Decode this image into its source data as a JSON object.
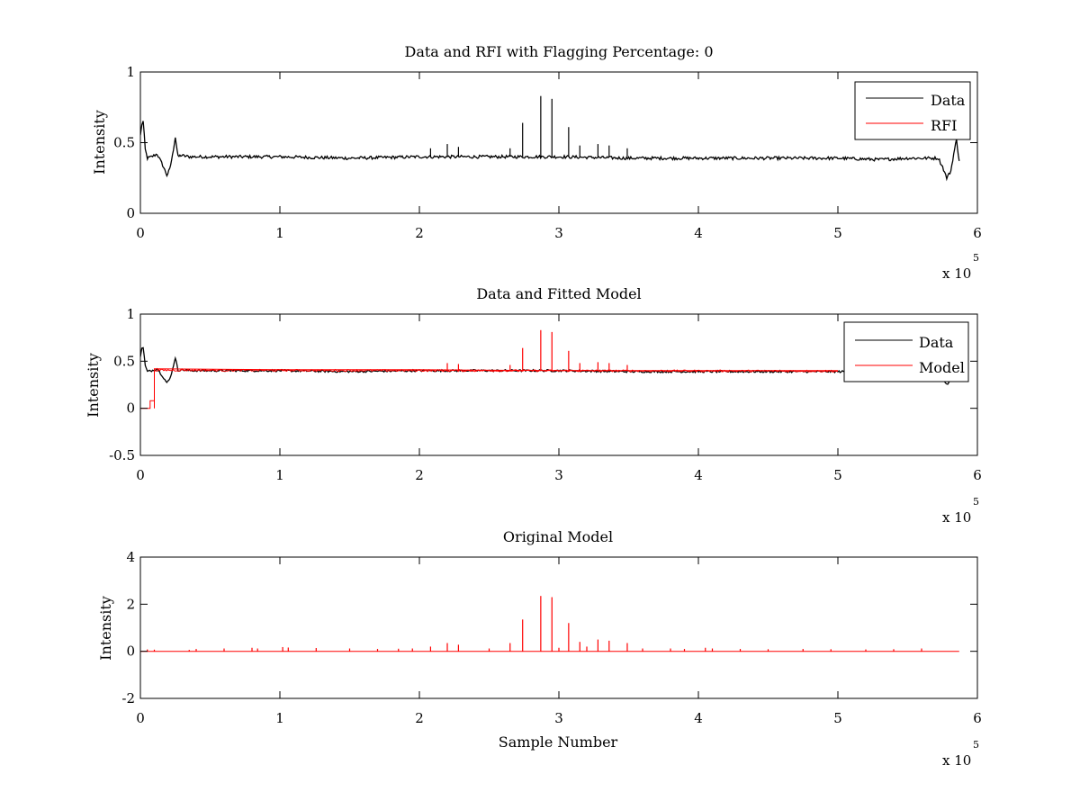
{
  "figure": {
    "background": "#ffffff"
  },
  "colors": {
    "data": "#000000",
    "model": "#ff0000",
    "axes": "#000000"
  },
  "chart_data": [
    {
      "type": "line",
      "title": "Data and RFI with Flagging Percentage: 0",
      "xlabel": "",
      "ylabel": "Intensity",
      "xlim": [
        0,
        6
      ],
      "ylim": [
        0,
        1
      ],
      "x_multiplier": "x 10",
      "x_exponent": "5",
      "xticks": [
        "0",
        "1",
        "2",
        "3",
        "4",
        "5",
        "6"
      ],
      "yticks": [
        "0",
        "0.5",
        "1"
      ],
      "ytick_values": [
        0,
        0.5,
        1
      ],
      "grid": false,
      "legend": {
        "placement": "top-right",
        "entries": [
          "Data",
          "RFI"
        ]
      },
      "baseline": 0.4,
      "series": [
        {
          "name": "Data",
          "color": "#000000",
          "x": [
            0,
            0.01,
            0.02,
            0.035,
            0.05,
            0.08,
            0.12,
            0.16,
            0.19,
            0.21,
            0.23,
            0.25,
            0.27,
            0.29,
            0.35,
            0.5,
            1.0,
            1.5,
            2.0,
            2.5,
            3.0,
            3.5,
            4.0,
            4.5,
            5.0,
            5.3,
            5.5,
            5.72,
            5.75,
            5.78,
            5.81,
            5.83,
            5.85,
            5.87
          ],
          "y": [
            0.55,
            0.63,
            0.65,
            0.45,
            0.39,
            0.4,
            0.42,
            0.34,
            0.27,
            0.31,
            0.41,
            0.54,
            0.4,
            0.41,
            0.4,
            0.4,
            0.4,
            0.39,
            0.4,
            0.4,
            0.4,
            0.39,
            0.39,
            0.39,
            0.39,
            0.38,
            0.39,
            0.39,
            0.33,
            0.25,
            0.3,
            0.42,
            0.52,
            0.37
          ],
          "spikes": [
            {
              "x": 2.08,
              "y": 0.46
            },
            {
              "x": 2.2,
              "y": 0.49
            },
            {
              "x": 2.28,
              "y": 0.47
            },
            {
              "x": 2.65,
              "y": 0.46
            },
            {
              "x": 2.74,
              "y": 0.64
            },
            {
              "x": 2.87,
              "y": 0.83
            },
            {
              "x": 2.95,
              "y": 0.81
            },
            {
              "x": 3.07,
              "y": 0.61
            },
            {
              "x": 3.15,
              "y": 0.48
            },
            {
              "x": 3.28,
              "y": 0.49
            },
            {
              "x": 3.36,
              "y": 0.48
            },
            {
              "x": 3.49,
              "y": 0.46
            }
          ]
        },
        {
          "name": "RFI",
          "color": "#ff0000",
          "x": [],
          "y": []
        }
      ]
    },
    {
      "type": "line",
      "title": "Data and Fitted Model",
      "xlabel": "",
      "ylabel": "Intensity",
      "xlim": [
        0,
        6
      ],
      "ylim": [
        -0.5,
        1
      ],
      "x_multiplier": "x 10",
      "x_exponent": "5",
      "xticks": [
        "0",
        "1",
        "2",
        "3",
        "4",
        "5",
        "6"
      ],
      "yticks": [
        "-0.5",
        "0",
        "0.5",
        "1"
      ],
      "ytick_values": [
        -0.5,
        0,
        0.5,
        1
      ],
      "grid": false,
      "legend": {
        "placement": "top-right",
        "entries": [
          "Data",
          "Model"
        ]
      },
      "baseline": 0.4,
      "series": [
        {
          "name": "Data",
          "color": "#000000",
          "x": [
            0,
            0.01,
            0.02,
            0.035,
            0.05,
            0.08,
            0.12,
            0.16,
            0.19,
            0.21,
            0.23,
            0.25,
            0.27,
            0.29,
            0.35,
            0.5,
            1.0,
            1.5,
            2.0,
            2.5,
            3.0,
            3.5,
            4.0,
            4.5,
            5.0,
            5.3,
            5.5,
            5.72,
            5.75,
            5.78,
            5.81
          ],
          "y": [
            0.55,
            0.63,
            0.65,
            0.45,
            0.39,
            0.4,
            0.42,
            0.34,
            0.27,
            0.31,
            0.41,
            0.54,
            0.4,
            0.41,
            0.4,
            0.4,
            0.4,
            0.39,
            0.4,
            0.4,
            0.4,
            0.39,
            0.39,
            0.39,
            0.39,
            0.38,
            0.39,
            0.39,
            0.33,
            0.25,
            0.3
          ]
        },
        {
          "name": "Model",
          "color": "#ff0000",
          "x": [
            0,
            0.07,
            0.07,
            0.1,
            0.1,
            0.1,
            1.0,
            2.0,
            3.0,
            4.0,
            5.0,
            5.0
          ],
          "y": [
            0,
            0,
            0.08,
            0.08,
            0,
            0.42,
            0.41,
            0.41,
            0.4,
            0.4,
            0.4,
            0.4
          ],
          "spikes": [
            {
              "x": 2.2,
              "y": 0.48
            },
            {
              "x": 2.28,
              "y": 0.47
            },
            {
              "x": 2.65,
              "y": 0.46
            },
            {
              "x": 2.74,
              "y": 0.64
            },
            {
              "x": 2.87,
              "y": 0.83
            },
            {
              "x": 2.95,
              "y": 0.81
            },
            {
              "x": 3.07,
              "y": 0.61
            },
            {
              "x": 3.15,
              "y": 0.48
            },
            {
              "x": 3.28,
              "y": 0.49
            },
            {
              "x": 3.36,
              "y": 0.48
            },
            {
              "x": 3.49,
              "y": 0.46
            }
          ]
        }
      ]
    },
    {
      "type": "line",
      "title": "Original Model",
      "xlabel": "Sample Number",
      "ylabel": "Intensity",
      "xlim": [
        0,
        6
      ],
      "ylim": [
        -2,
        4
      ],
      "x_multiplier": "x 10",
      "x_exponent": "5",
      "xticks": [
        "0",
        "1",
        "2",
        "3",
        "4",
        "5",
        "6"
      ],
      "yticks": [
        "-2",
        "0",
        "2",
        "4"
      ],
      "ytick_values": [
        -2,
        0,
        2,
        4
      ],
      "grid": false,
      "legend": null,
      "baseline": 0,
      "series": [
        {
          "name": "",
          "color": "#ff0000",
          "x": [
            0,
            5.87
          ],
          "y": [
            0,
            0
          ],
          "spikes": [
            {
              "x": 0.05,
              "y": 0.08
            },
            {
              "x": 0.1,
              "y": 0.07
            },
            {
              "x": 0.35,
              "y": 0.06
            },
            {
              "x": 0.4,
              "y": 0.1
            },
            {
              "x": 0.6,
              "y": 0.12
            },
            {
              "x": 0.8,
              "y": 0.15
            },
            {
              "x": 0.84,
              "y": 0.12
            },
            {
              "x": 1.02,
              "y": 0.18
            },
            {
              "x": 1.06,
              "y": 0.16
            },
            {
              "x": 1.26,
              "y": 0.14
            },
            {
              "x": 1.5,
              "y": 0.12
            },
            {
              "x": 1.7,
              "y": 0.1
            },
            {
              "x": 1.85,
              "y": 0.11
            },
            {
              "x": 1.95,
              "y": 0.12
            },
            {
              "x": 2.08,
              "y": 0.2
            },
            {
              "x": 2.2,
              "y": 0.35
            },
            {
              "x": 2.28,
              "y": 0.28
            },
            {
              "x": 2.5,
              "y": 0.12
            },
            {
              "x": 2.65,
              "y": 0.35
            },
            {
              "x": 2.74,
              "y": 1.35
            },
            {
              "x": 2.87,
              "y": 2.35
            },
            {
              "x": 2.95,
              "y": 2.3
            },
            {
              "x": 3.0,
              "y": 0.15
            },
            {
              "x": 3.07,
              "y": 1.2
            },
            {
              "x": 3.15,
              "y": 0.4
            },
            {
              "x": 3.2,
              "y": 0.2
            },
            {
              "x": 3.28,
              "y": 0.5
            },
            {
              "x": 3.36,
              "y": 0.45
            },
            {
              "x": 3.49,
              "y": 0.35
            },
            {
              "x": 3.6,
              "y": 0.12
            },
            {
              "x": 3.8,
              "y": 0.12
            },
            {
              "x": 3.9,
              "y": 0.1
            },
            {
              "x": 4.05,
              "y": 0.15
            },
            {
              "x": 4.1,
              "y": 0.12
            },
            {
              "x": 4.3,
              "y": 0.1
            },
            {
              "x": 4.5,
              "y": 0.09
            },
            {
              "x": 4.75,
              "y": 0.1
            },
            {
              "x": 4.95,
              "y": 0.09
            },
            {
              "x": 5.2,
              "y": 0.08
            },
            {
              "x": 5.4,
              "y": 0.09
            },
            {
              "x": 5.6,
              "y": 0.12
            }
          ]
        }
      ]
    }
  ]
}
